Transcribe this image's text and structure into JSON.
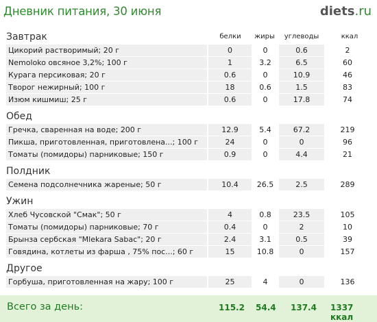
{
  "header": {
    "title": "Дневник питания, 30 июня",
    "logo_main": "diets",
    "logo_tld": ".ru"
  },
  "columns": {
    "protein": "белки",
    "fat": "жиры",
    "carbs": "углеводы",
    "kcal": "ккал"
  },
  "sections": [
    {
      "name": "Завтрак",
      "items": [
        {
          "name": "Цикорий растворимый; 20 г",
          "protein": "0",
          "fat": "0",
          "carbs": "0.6",
          "kcal": "2"
        },
        {
          "name": "Nemoloko овсяное 3,2%; 100 г",
          "protein": "1",
          "fat": "3.2",
          "carbs": "6.5",
          "kcal": "60"
        },
        {
          "name": "Курага персиковая; 20 г",
          "protein": "0.6",
          "fat": "0",
          "carbs": "10.9",
          "kcal": "46"
        },
        {
          "name": "Творог нежирный; 100 г",
          "protein": "18",
          "fat": "0.6",
          "carbs": "1.5",
          "kcal": "83"
        },
        {
          "name": "Изюм кишмиш; 25 г",
          "protein": "0.6",
          "fat": "0",
          "carbs": "17.8",
          "kcal": "74"
        }
      ]
    },
    {
      "name": "Обед",
      "items": [
        {
          "name": "Гречка, сваренная на воде; 200 г",
          "protein": "12.9",
          "fat": "5.4",
          "carbs": "67.2",
          "kcal": "219"
        },
        {
          "name": "Пикша, приготовленная, приготовлена...; 100 г",
          "protein": "24",
          "fat": "0",
          "carbs": "0",
          "kcal": "96"
        },
        {
          "name": "Томаты (помидоры) парниковые; 150 г",
          "protein": "0.9",
          "fat": "0",
          "carbs": "4.4",
          "kcal": "21"
        }
      ]
    },
    {
      "name": "Полдник",
      "items": [
        {
          "name": "Семена подсолнечника жареные; 50 г",
          "protein": "10.4",
          "fat": "26.5",
          "carbs": "2.5",
          "kcal": "289"
        }
      ]
    },
    {
      "name": "Ужин",
      "items": [
        {
          "name": "Хлеб Чусовской \"Смак\"; 50 г",
          "protein": "4",
          "fat": "0.8",
          "carbs": "23.5",
          "kcal": "105"
        },
        {
          "name": "Томаты (помидоры) парниковые; 70 г",
          "protein": "0.4",
          "fat": "0",
          "carbs": "2",
          "kcal": "10"
        },
        {
          "name": "Брынза сербская \"Mlekara Sabac\"; 20 г",
          "protein": "2.4",
          "fat": "3.1",
          "carbs": "0.5",
          "kcal": "39"
        },
        {
          "name": "Говядина, котлеты из фарша , 75% пос...; 60 г",
          "protein": "15",
          "fat": "10.8",
          "carbs": "0",
          "kcal": "157"
        }
      ]
    },
    {
      "name": "Другое",
      "items": [
        {
          "name": "Горбуша, приготовленная на жару; 100 г",
          "protein": "25",
          "fat": "4",
          "carbs": "0",
          "kcal": "136"
        }
      ]
    }
  ],
  "totals": {
    "label": "Всего за день:",
    "protein": "115.2",
    "fat": "54.4",
    "carbs": "137.4",
    "kcal": "1337 ккал"
  },
  "colors": {
    "title_green": "#2f8a2f",
    "row_shade": "#efefef",
    "footer_bg": "#e2f2d8",
    "footer_text": "#1f7a1f"
  }
}
